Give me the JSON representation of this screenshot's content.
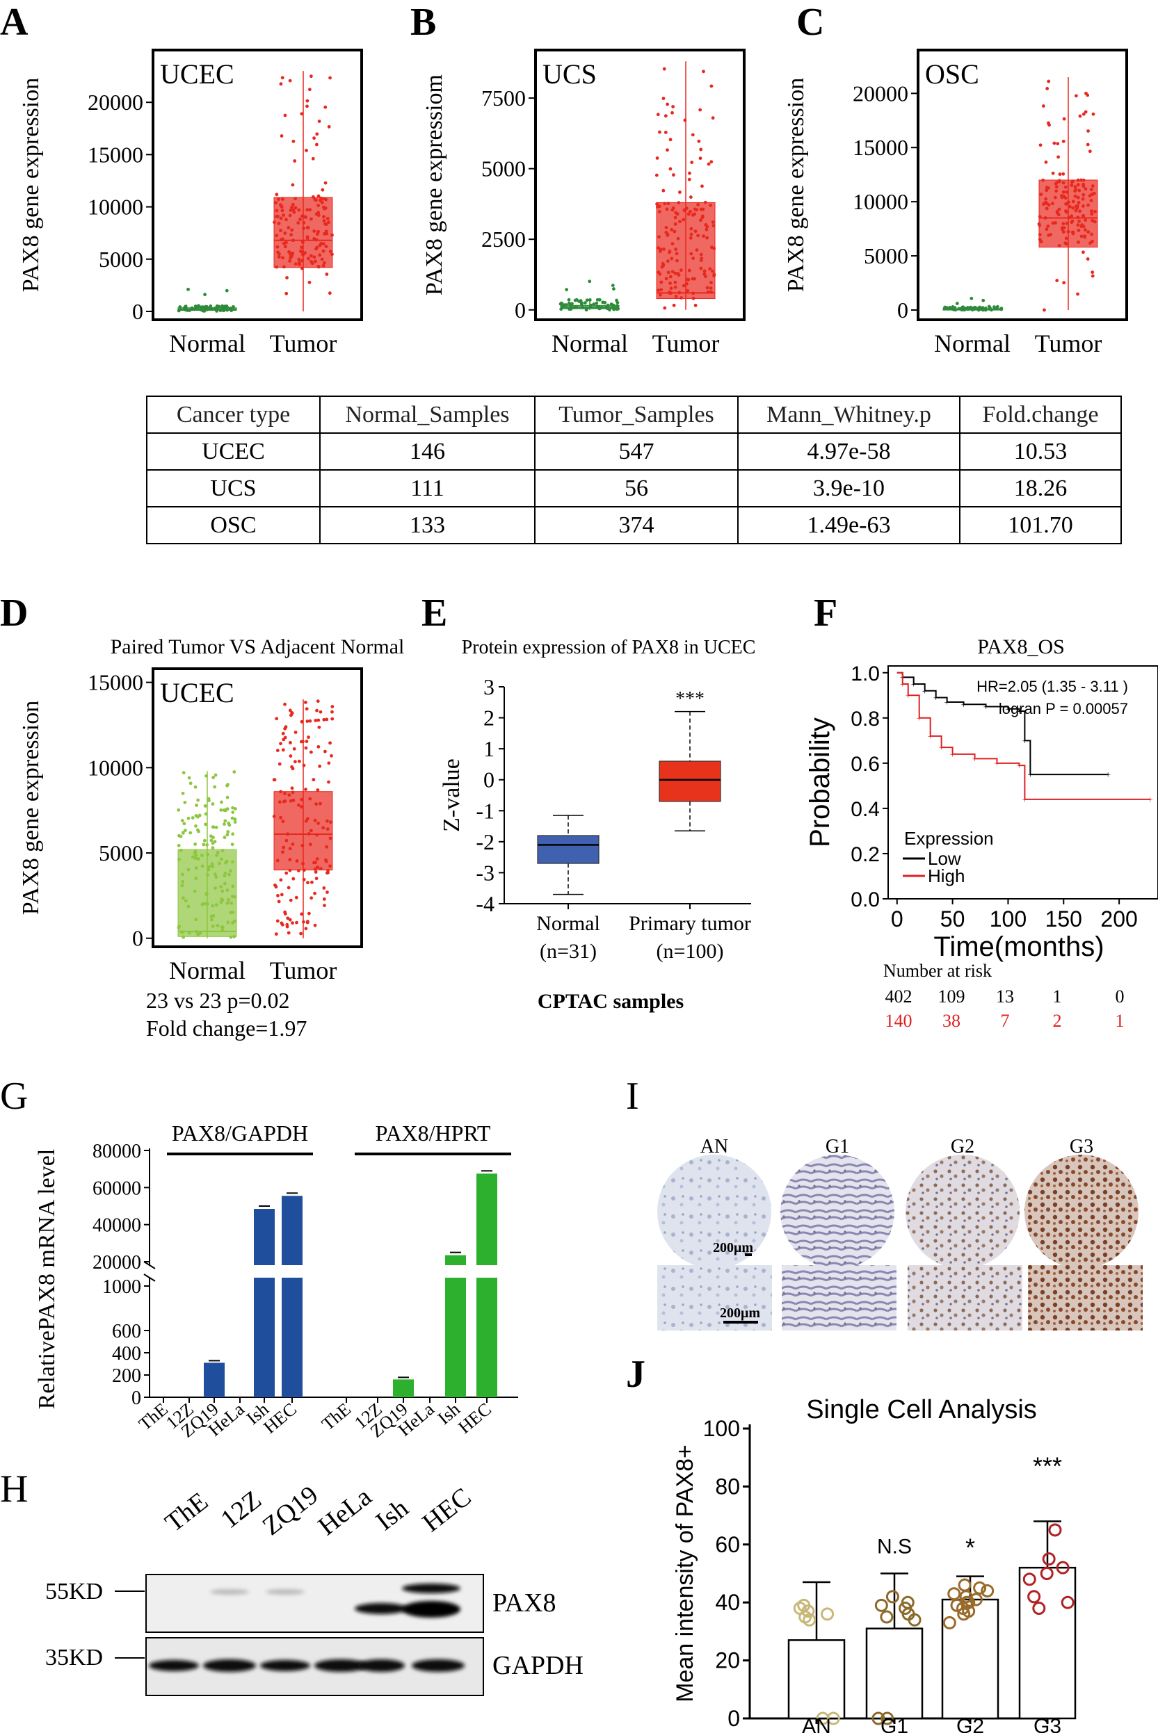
{
  "panel_labels": [
    "A",
    "B",
    "C",
    "D",
    "E",
    "F",
    "G",
    "H",
    "I",
    "J"
  ],
  "chart_data": [
    {
      "id": "A",
      "type": "box",
      "inset_label": "UCEC",
      "ylabel": "PAX8 gene expression",
      "categories": [
        "Normal",
        "Tumor"
      ],
      "yticks": [
        0,
        5000,
        10000,
        15000,
        20000
      ],
      "ylim": [
        -800,
        25000
      ],
      "boxes": [
        {
          "category": "Normal",
          "color": "#2e8b3a",
          "min": 0,
          "q1": 100,
          "median": 200,
          "q3": 350,
          "max": 600
        },
        {
          "category": "Tumor",
          "color": "#e8281e",
          "min": 0,
          "q1": 4200,
          "median": 6800,
          "q3": 10900,
          "max": 23000
        }
      ]
    },
    {
      "id": "B",
      "type": "box",
      "inset_label": "UCS",
      "ylabel": "PAX8 gene expressiom",
      "categories": [
        "Normal",
        "Tumor"
      ],
      "yticks": [
        0,
        2500,
        5000,
        7500
      ],
      "ylim": [
        -350,
        9200
      ],
      "boxes": [
        {
          "category": "Normal",
          "color": "#2e8b3a",
          "min": 0,
          "q1": 40,
          "median": 80,
          "q3": 160,
          "max": 400
        },
        {
          "category": "Tumor",
          "color": "#e8281e",
          "min": 0,
          "q1": 400,
          "median": 600,
          "q3": 3800,
          "max": 8800
        }
      ]
    },
    {
      "id": "C",
      "type": "box",
      "inset_label": "OSC",
      "ylabel": "PAX8 gene expression",
      "categories": [
        "Normal",
        "Tumor"
      ],
      "yticks": [
        0,
        5000,
        10000,
        15000,
        20000
      ],
      "ylim": [
        -900,
        24000
      ],
      "boxes": [
        {
          "category": "Normal",
          "color": "#2e8b3a",
          "min": 0,
          "q1": 30,
          "median": 60,
          "q3": 120,
          "max": 300
        },
        {
          "category": "Tumor",
          "color": "#e8281e",
          "min": 0,
          "q1": 5800,
          "median": 8500,
          "q3": 12000,
          "max": 21500
        }
      ]
    },
    {
      "id": "D",
      "type": "box",
      "title": "Paired Tumor VS Adjacent Normal",
      "inset_label": "UCEC",
      "ylabel": "PAX8 gene expression",
      "categories": [
        "Normal",
        "Tumor"
      ],
      "yticks": [
        0,
        5000,
        10000,
        15000
      ],
      "ylim": [
        -500,
        15800
      ],
      "boxes": [
        {
          "category": "Normal",
          "color": "#8dc63f",
          "min": 0,
          "q1": 100,
          "median": 400,
          "q3": 5200,
          "max": 9800
        },
        {
          "category": "Tumor",
          "color": "#e8281e",
          "min": 0,
          "q1": 4000,
          "median": 6100,
          "q3": 8600,
          "max": 14000
        }
      ],
      "notes": [
        "23 vs 23 p=0.02",
        "Fold change=1.97"
      ]
    },
    {
      "id": "E",
      "type": "box",
      "title": "Protein expression of PAX8 in UCEC",
      "ylabel": "Z-value",
      "xlabel": "CPTAC samples",
      "categories": [
        "Normal",
        "Primary tumor"
      ],
      "category_n": [
        "(n=31)",
        "(n=100)"
      ],
      "yticks": [
        -4,
        -3,
        -2,
        -1,
        0,
        1,
        2,
        3
      ],
      "ylim": [
        -4,
        3
      ],
      "boxes": [
        {
          "category": "Normal",
          "color": "#4060b0",
          "min": -3.7,
          "q1": -2.7,
          "median": -2.1,
          "q3": -1.8,
          "max": -1.15
        },
        {
          "category": "Primary tumor",
          "color": "#e8331c",
          "min": -1.65,
          "q1": -0.7,
          "median": 0.0,
          "q3": 0.6,
          "max": 2.2
        }
      ],
      "annotation": "***"
    },
    {
      "id": "F",
      "type": "line",
      "title": "PAX8_OS",
      "xlabel": "Time(months)",
      "ylabel": "Probability",
      "xticks": [
        0,
        50,
        100,
        150,
        200
      ],
      "yticks": [
        "0.0",
        "0.2",
        "0.4",
        "0.6",
        "0.8",
        "1.0"
      ],
      "xlim": [
        -8,
        235
      ],
      "ylim": [
        0,
        1.03
      ],
      "stats": [
        "HR=2.05 (1.35 - 3.11 )",
        "logran P = 0.00057"
      ],
      "legend_title": "Expression",
      "series": [
        {
          "name": "Low",
          "color": "#000000",
          "points": [
            [
              0,
              1
            ],
            [
              5,
              0.98
            ],
            [
              15,
              0.95
            ],
            [
              25,
              0.92
            ],
            [
              35,
              0.89
            ],
            [
              45,
              0.87
            ],
            [
              60,
              0.86
            ],
            [
              80,
              0.85
            ],
            [
              100,
              0.84
            ],
            [
              110,
              0.83
            ],
            [
              115,
              0.7
            ],
            [
              120,
              0.55
            ],
            [
              190,
              0.55
            ]
          ]
        },
        {
          "name": "High",
          "color": "#e02020",
          "points": [
            [
              0,
              1
            ],
            [
              5,
              0.95
            ],
            [
              10,
              0.9
            ],
            [
              20,
              0.8
            ],
            [
              30,
              0.72
            ],
            [
              40,
              0.67
            ],
            [
              50,
              0.64
            ],
            [
              70,
              0.62
            ],
            [
              90,
              0.6
            ],
            [
              110,
              0.59
            ],
            [
              115,
              0.44
            ],
            [
              228,
              0.44
            ]
          ]
        }
      ],
      "risk_table": {
        "title": "Number at risk",
        "rows": [
          {
            "values": [
              "402",
              "109",
              "13",
              "1",
              "0"
            ],
            "color": "#000000"
          },
          {
            "values": [
              "140",
              "38",
              "7",
              "2",
              "1"
            ],
            "color": "#e02020"
          }
        ]
      }
    },
    {
      "id": "G",
      "type": "bar",
      "ylabel": "RelativePAX8 mRNA level",
      "groups": [
        {
          "name": "PAX8/GAPDH",
          "color": "#1f4e9c",
          "categories": [
            "ThE",
            "12Z",
            "ZQ19",
            "HeLa",
            "Ish",
            "HEC"
          ],
          "values": [
            0,
            0,
            310,
            0,
            48500,
            55500
          ]
        },
        {
          "name": "PAX8/HPRT",
          "color": "#2db02d",
          "categories": [
            "ThE",
            "12Z",
            "ZQ19",
            "HeLa",
            "Ish",
            "HEC"
          ],
          "values": [
            0,
            0,
            160,
            0,
            23500,
            67500
          ]
        }
      ],
      "yticks_low": [
        0,
        200,
        400,
        600,
        1000
      ],
      "yticks_high": [
        20000,
        40000,
        60000,
        80000
      ]
    },
    {
      "id": "J",
      "type": "bar",
      "title": "Single Cell Analysis",
      "ylabel": "Mean intensity of PAX8+",
      "categories": [
        "AN",
        "G1",
        "G2",
        "G3"
      ],
      "values": [
        27,
        31,
        41,
        52
      ],
      "errors": [
        20,
        19,
        8,
        16
      ],
      "significance": [
        "",
        "N.S",
        "*",
        "***"
      ],
      "ylim": [
        0,
        100
      ],
      "yticks": [
        0,
        20,
        40,
        60,
        80,
        100
      ],
      "point_colors": [
        "#c8b878",
        "#8b6a2a",
        "#9a6a2a",
        "#b22222"
      ],
      "points": [
        [
          0,
          0,
          37,
          38,
          35,
          36,
          39,
          34
        ],
        [
          0,
          0,
          40,
          38,
          35,
          36,
          39,
          34,
          42
        ],
        [
          33,
          38,
          36,
          40,
          42,
          44,
          39,
          41,
          43,
          45,
          37,
          46,
          40
        ],
        [
          65,
          55,
          52,
          48,
          50,
          40,
          42,
          38
        ]
      ]
    }
  ],
  "stats_table": {
    "headers": [
      "Cancer type",
      "Normal_Samples",
      "Tumor_Samples",
      "Mann_Whitney.p",
      "Fold.change"
    ],
    "rows": [
      [
        "UCEC",
        "146",
        "547",
        "4.97e-58",
        "10.53"
      ],
      [
        "UCS",
        "111",
        "56",
        "3.9e-10",
        "18.26"
      ],
      [
        "OSC",
        "133",
        "374",
        "1.49e-63",
        "101.70"
      ]
    ]
  },
  "western_blot": {
    "lanes": [
      "ThE",
      "12Z",
      "ZQ19",
      "HeLa",
      "Ish",
      "HEC"
    ],
    "markers": [
      "55KD",
      "35KD"
    ],
    "bands": [
      "PAX8",
      "GAPDH"
    ]
  },
  "ihc": {
    "columns": [
      "AN",
      "G1",
      "G2",
      "G3"
    ],
    "scale_bar": "200μm"
  }
}
